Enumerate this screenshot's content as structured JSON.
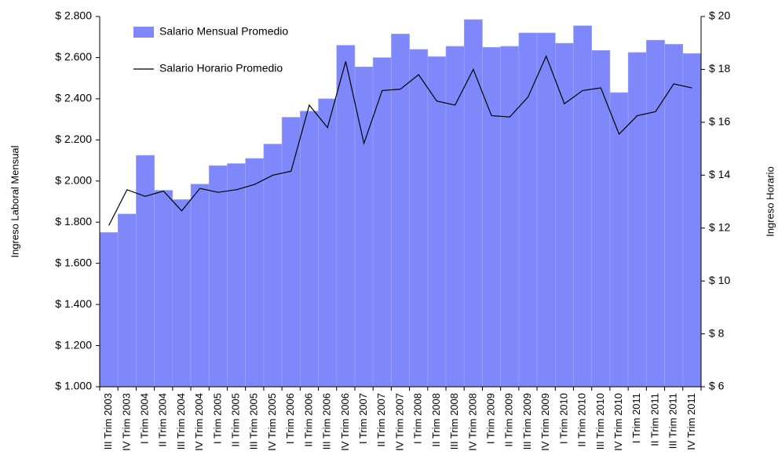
{
  "chart_data": {
    "type": "combo",
    "y_label": "Ingreso Laboral  Mensual",
    "y2_label": "Ingreso Horario",
    "categories": [
      "III Trim 2003",
      "IV Trim 2003",
      "I Trim 2004",
      "II Trim 2004",
      "III Trim 2004",
      "IV Trim 2004",
      "I Trim 2005",
      "II Trim 2005",
      "III Trim 2005",
      "IV Trim 2005",
      "I Trim 2006",
      "II Trim 2006",
      "III Trim 2006",
      "IV Trim 2006",
      "I Trim 2007",
      "II Trim 2007",
      "IV Trim 2007",
      "I Trim 2008",
      "II Trim 2008",
      "III Trim 2008",
      "IV Trim 2008",
      "I Trim 2009",
      "II Trim 2009",
      "III Trim 2009",
      "IV Trim 2009",
      "I Trim 2010",
      "II Trim 2010",
      "III Trim 2010",
      "IV Trim 2010",
      "I Trim 2011",
      "II Trim 2011",
      "III Trim 2011",
      "IV Trim 2011"
    ],
    "series": [
      {
        "name": "Salario Mensual Promedio",
        "type": "bar",
        "color": "#7f88fa",
        "values": [
          1750,
          1840,
          2125,
          1955,
          1910,
          1985,
          2075,
          2085,
          2110,
          2180,
          2310,
          2340,
          2400,
          2660,
          2555,
          2600,
          2715,
          2640,
          2605,
          2655,
          2785,
          2650,
          2655,
          2720,
          2720,
          2670,
          2755,
          2635,
          2430,
          2625,
          2685,
          2665,
          2620
        ]
      },
      {
        "name": "Salario Horario Promedio",
        "type": "line",
        "axis": "y2",
        "color": "#000000",
        "values": [
          12.1,
          13.45,
          13.2,
          13.4,
          12.65,
          13.5,
          13.35,
          13.45,
          13.65,
          14.0,
          14.15,
          16.65,
          15.8,
          18.3,
          15.2,
          17.2,
          17.25,
          17.8,
          16.8,
          16.65,
          18.0,
          16.25,
          16.2,
          16.95,
          18.5,
          16.7,
          17.2,
          17.3,
          15.55,
          16.25,
          16.4,
          17.45,
          17.3
        ]
      }
    ],
    "ylim": [
      1000,
      2800
    ],
    "yticks": [
      {
        "value": 1000,
        "label": "$ 1.000"
      },
      {
        "value": 1200,
        "label": "$ 1.200"
      },
      {
        "value": 1400,
        "label": "$ 1.400"
      },
      {
        "value": 1600,
        "label": "$ 1.600"
      },
      {
        "value": 1800,
        "label": "$ 1.800"
      },
      {
        "value": 2000,
        "label": "$ 2.000"
      },
      {
        "value": 2200,
        "label": "$ 2.200"
      },
      {
        "value": 2400,
        "label": "$ 2.400"
      },
      {
        "value": 2600,
        "label": "$ 2.600"
      },
      {
        "value": 2800,
        "label": "$ 2.800"
      }
    ],
    "y2lim": [
      6,
      20
    ],
    "y2ticks": [
      {
        "value": 6,
        "label": "$ 6"
      },
      {
        "value": 8,
        "label": "$ 8"
      },
      {
        "value": 10,
        "label": "$ 10"
      },
      {
        "value": 12,
        "label": "$ 12"
      },
      {
        "value": 14,
        "label": "$ 14"
      },
      {
        "value": 16,
        "label": "$ 16"
      },
      {
        "value": 18,
        "label": "$ 18"
      },
      {
        "value": 20,
        "label": "$ 20"
      }
    ],
    "grid": false
  }
}
